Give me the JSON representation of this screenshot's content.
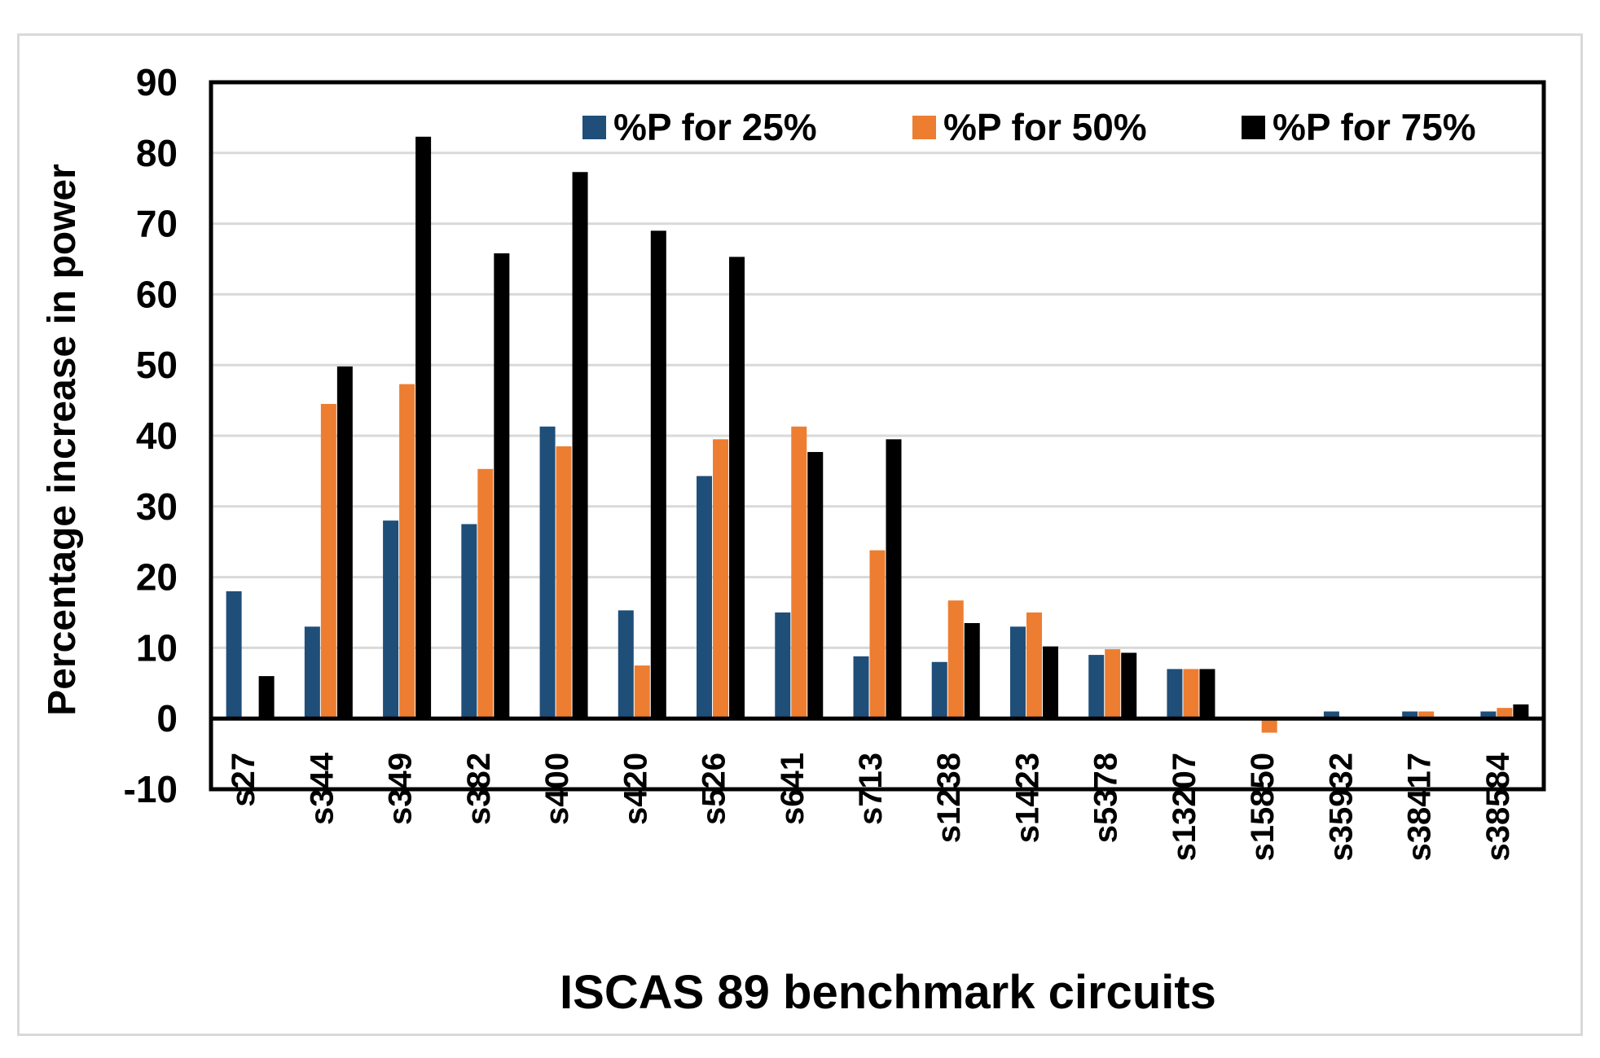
{
  "chart_data": {
    "type": "bar",
    "title": "",
    "xlabel": "ISCAS 89 benchmark circuits",
    "ylabel": "Percentage increase in power",
    "ylim": [
      -10,
      90
    ],
    "yticks": [
      -10,
      0,
      10,
      20,
      30,
      40,
      50,
      60,
      70,
      80,
      90
    ],
    "grid": true,
    "legend_position": "top-right",
    "categories": [
      "s27",
      "s344",
      "s349",
      "s382",
      "s400",
      "s420",
      "s526",
      "s641",
      "s713",
      "s1238",
      "s1423",
      "s5378",
      "s13207",
      "s15850",
      "s35932",
      "s38417",
      "s38584"
    ],
    "series": [
      {
        "name": "%P for 25%",
        "color": "#1f4e79",
        "values": [
          18,
          13,
          28,
          27.5,
          41.3,
          15.3,
          34.3,
          15,
          8.8,
          8,
          13,
          9,
          7,
          0,
          1,
          1,
          1
        ]
      },
      {
        "name": "%P for 50%",
        "color": "#ed7d31",
        "values": [
          0,
          44.5,
          47.3,
          35.3,
          38.5,
          7.5,
          39.5,
          41.3,
          23.8,
          16.7,
          15,
          9.8,
          7,
          -2,
          0,
          1,
          1.5
        ]
      },
      {
        "name": "%P for 75%",
        "color": "#000000",
        "values": [
          6,
          49.8,
          82.3,
          65.8,
          77.3,
          69,
          65.3,
          37.7,
          39.5,
          13.5,
          10.2,
          9.3,
          7,
          0,
          0,
          0,
          2
        ]
      }
    ]
  }
}
